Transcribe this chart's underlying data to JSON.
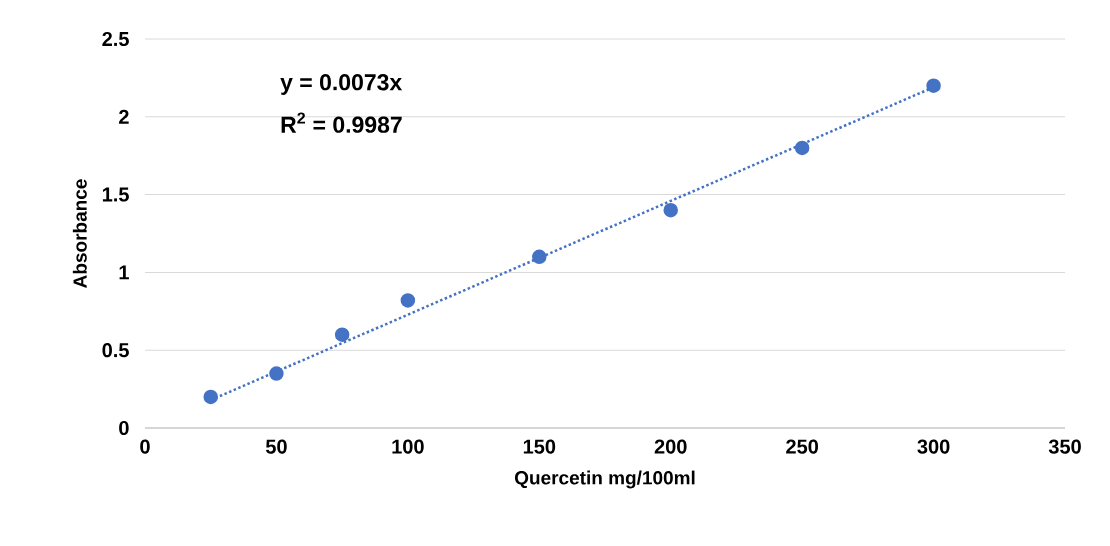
{
  "chart_data": {
    "type": "scatter",
    "xlabel": "Quercetin mg/100ml",
    "ylabel": "Absorbance",
    "annotations": [
      "y = 0.0073x",
      "R$^{2}$ = 0.9987"
    ],
    "series": [
      {
        "type": "scatter",
        "color": "#4472c4",
        "marker": "circle",
        "x": [
          25,
          50,
          75,
          100,
          150,
          200,
          250,
          300
        ],
        "values": [
          0.2,
          0.35,
          0.6,
          0.82,
          1.1,
          1.4,
          1.8,
          2.2
        ]
      },
      {
        "type": "line",
        "color": "#4472c4",
        "marker": "none",
        "line_style": "dotted",
        "x": [
          25,
          300
        ],
        "values": [
          0.18,
          2.19
        ]
      }
    ],
    "xlim": [
      0,
      350
    ],
    "xticks": [
      0,
      50,
      100,
      150,
      200,
      250,
      300,
      350
    ],
    "ylim": [
      0,
      2.5
    ],
    "yticks": [
      0,
      0.5,
      1,
      1.5,
      2,
      2.5
    ],
    "grid": "y"
  }
}
